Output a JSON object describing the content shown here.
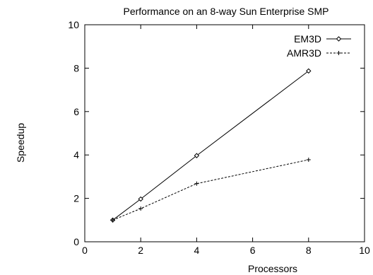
{
  "chart_data": {
    "type": "line",
    "title": "Performance on an 8-way Sun Enterprise SMP",
    "xlabel": "Processors",
    "ylabel": "Speedup",
    "xlim": [
      0,
      10
    ],
    "ylim": [
      0,
      10
    ],
    "xticks": [
      "0",
      "2",
      "4",
      "6",
      "8",
      "10"
    ],
    "yticks": [
      "0",
      "2",
      "4",
      "6",
      "8",
      "10"
    ],
    "grid": false,
    "legend_position": "top-right",
    "series": [
      {
        "name": "EM3D",
        "x": [
          1,
          2,
          4,
          8
        ],
        "y": [
          1.0,
          1.97,
          3.97,
          7.87
        ],
        "line": "solid",
        "marker": "diamond",
        "color": "#000000"
      },
      {
        "name": "AMR3D",
        "x": [
          1,
          2,
          4,
          8
        ],
        "y": [
          1.0,
          1.53,
          2.68,
          3.78
        ],
        "line": "dashed",
        "marker": "plus",
        "color": "#000000"
      }
    ]
  }
}
